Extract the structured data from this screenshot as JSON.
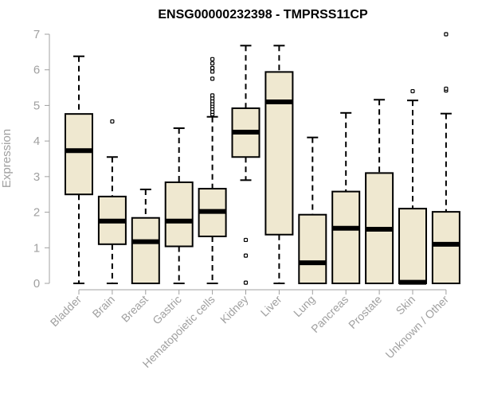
{
  "chart_data": {
    "type": "box",
    "title": "ENSG00000232398 - TMPRSS11CP",
    "xlabel": "",
    "ylabel": "Expression",
    "ylim": [
      0,
      7
    ],
    "yticks": [
      0,
      1,
      2,
      3,
      4,
      5,
      6,
      7
    ],
    "box_fill": "#efe8d0",
    "categories": [
      "Bladder",
      "Brain",
      "Breast",
      "Gastric",
      "Hematopoietic cells",
      "Kidney",
      "Liver",
      "Lung",
      "Pancreas",
      "Prostate",
      "Skin",
      "Unknown / Other"
    ],
    "boxes": [
      {
        "name": "Bladder",
        "min": 0,
        "q1": 2.5,
        "median": 3.73,
        "q3": 4.76,
        "max": 6.38,
        "outliers": []
      },
      {
        "name": "Brain",
        "min": 0,
        "q1": 1.1,
        "median": 1.75,
        "q3": 2.44,
        "max": 3.55,
        "outliers": [
          4.55
        ]
      },
      {
        "name": "Breast",
        "min": 0,
        "q1": 0,
        "median": 1.17,
        "q3": 1.84,
        "max": 2.64,
        "outliers": []
      },
      {
        "name": "Gastric",
        "min": 0,
        "q1": 1.04,
        "median": 1.75,
        "q3": 2.84,
        "max": 4.36,
        "outliers": []
      },
      {
        "name": "Hematopoietic cells",
        "min": 0,
        "q1": 1.32,
        "median": 2.02,
        "q3": 2.66,
        "max": 4.68,
        "outliers": [
          4.75,
          4.82,
          4.9,
          4.98,
          5.05,
          5.12,
          5.2,
          5.28,
          5.75,
          5.95,
          6.05,
          6.18,
          6.3
        ]
      },
      {
        "name": "Kidney",
        "min": 2.9,
        "q1": 3.55,
        "median": 4.25,
        "q3": 4.92,
        "max": 6.68,
        "outliers": [
          1.22,
          0.78,
          0.02
        ]
      },
      {
        "name": "Liver",
        "min": 0,
        "q1": 1.37,
        "median": 5.1,
        "q3": 5.94,
        "max": 6.68,
        "outliers": []
      },
      {
        "name": "Lung",
        "min": 0,
        "q1": 0,
        "median": 0.58,
        "q3": 1.93,
        "max": 4.1,
        "outliers": []
      },
      {
        "name": "Pancreas",
        "min": 0,
        "q1": 0,
        "median": 1.55,
        "q3": 2.58,
        "max": 4.79,
        "outliers": []
      },
      {
        "name": "Prostate",
        "min": 0,
        "q1": 0,
        "median": 1.52,
        "q3": 3.1,
        "max": 5.16,
        "outliers": []
      },
      {
        "name": "Skin",
        "min": 0,
        "q1": 0,
        "median": 0.03,
        "q3": 2.1,
        "max": 5.14,
        "outliers": [
          5.4
        ]
      },
      {
        "name": "Unknown / Other",
        "min": 0,
        "q1": 0,
        "median": 1.1,
        "q3": 2.01,
        "max": 4.77,
        "outliers": [
          5.42,
          5.47,
          7.0
        ]
      }
    ]
  }
}
